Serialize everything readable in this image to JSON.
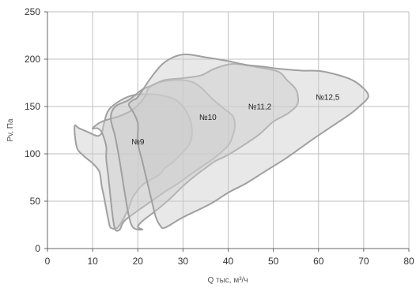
{
  "chart_data": {
    "type": "area",
    "xlabel": "Q тыс, м³/ч",
    "ylabel": "Pv, Па",
    "xlim": [
      0,
      80
    ],
    "ylim": [
      0,
      250
    ],
    "x_ticks": [
      0,
      10,
      20,
      30,
      40,
      50,
      60,
      70,
      80
    ],
    "y_ticks": [
      0,
      50,
      100,
      150,
      200,
      250
    ],
    "grid": true,
    "colors": {
      "fill": "#d9d9d9",
      "stroke": "#a0a0a0"
    },
    "series": [
      {
        "name": "№9",
        "label_at": [
          20,
          110
        ],
        "points": [
          [
            6,
            129
          ],
          [
            7,
            127
          ],
          [
            9,
            123
          ],
          [
            11,
            119
          ],
          [
            12,
            122
          ],
          [
            12.5,
            132
          ],
          [
            13.5,
            146
          ],
          [
            16,
            156
          ],
          [
            19,
            162
          ],
          [
            22,
            163
          ],
          [
            25,
            162
          ],
          [
            28,
            158
          ],
          [
            30,
            150
          ],
          [
            31.5,
            137
          ],
          [
            32,
            123
          ],
          [
            31.5,
            111
          ],
          [
            30,
            102
          ],
          [
            28,
            92
          ],
          [
            26,
            85
          ],
          [
            25,
            79
          ],
          [
            23,
            73
          ],
          [
            21,
            67
          ],
          [
            19,
            55
          ],
          [
            18,
            43
          ],
          [
            17,
            33
          ],
          [
            15.5,
            22
          ],
          [
            14,
            22
          ],
          [
            13.5,
            30
          ],
          [
            13,
            42
          ],
          [
            12.5,
            55
          ],
          [
            12,
            66
          ],
          [
            11.5,
            81
          ],
          [
            10,
            90
          ],
          [
            8,
            98
          ],
          [
            6.5,
            107
          ]
        ]
      },
      {
        "name": "№10",
        "label_at": [
          35.5,
          136
        ],
        "points": [
          [
            10,
            127
          ],
          [
            12,
            134
          ],
          [
            16,
            140
          ],
          [
            19,
            147
          ],
          [
            21.5,
            160
          ],
          [
            22.5,
            170
          ],
          [
            25,
            176
          ],
          [
            29,
            178
          ],
          [
            32,
            176
          ],
          [
            34,
            170
          ],
          [
            35.5,
            163
          ],
          [
            36.5,
            158
          ],
          [
            37.5,
            154
          ],
          [
            39,
            148
          ],
          [
            41,
            140
          ],
          [
            41.5,
            130
          ],
          [
            41,
            119
          ],
          [
            40,
            109
          ],
          [
            37,
            96
          ],
          [
            34,
            86
          ],
          [
            31,
            76
          ],
          [
            29,
            69
          ],
          [
            26,
            60
          ],
          [
            23,
            50
          ],
          [
            20,
            40
          ],
          [
            17,
            29
          ],
          [
            16,
            20
          ],
          [
            15,
            20
          ],
          [
            14.5,
            32
          ],
          [
            14,
            52
          ],
          [
            13.5,
            75
          ],
          [
            13,
            95
          ],
          [
            13,
            108
          ],
          [
            12,
            123
          ],
          [
            11,
            127
          ]
        ]
      },
      {
        "name": "№11,2",
        "label_at": [
          47,
          147
        ],
        "points": [
          [
            15,
            150
          ],
          [
            18,
            157
          ],
          [
            21,
            168
          ],
          [
            23,
            172
          ],
          [
            26,
            178
          ],
          [
            30,
            180
          ],
          [
            34,
            183
          ],
          [
            37,
            190
          ],
          [
            41,
            195
          ],
          [
            46,
            192
          ],
          [
            51,
            187
          ],
          [
            53,
            178
          ],
          [
            55,
            168
          ],
          [
            55.5,
            157
          ],
          [
            55,
            150
          ],
          [
            53,
            142
          ],
          [
            50,
            134
          ],
          [
            47,
            121
          ],
          [
            44,
            111
          ],
          [
            40,
            99
          ],
          [
            37,
            92
          ],
          [
            35,
            85
          ],
          [
            33,
            78
          ],
          [
            30,
            66
          ],
          [
            27,
            52
          ],
          [
            24,
            40
          ],
          [
            21,
            29
          ],
          [
            20,
            23
          ],
          [
            21,
            20
          ],
          [
            19,
            22
          ],
          [
            18,
            35
          ],
          [
            17,
            62
          ],
          [
            16,
            92
          ],
          [
            15,
            118
          ],
          [
            14,
            138
          ]
        ]
      },
      {
        "name": "№12,5",
        "label_at": [
          62,
          157
        ],
        "points": [
          [
            20,
            160
          ],
          [
            23,
            181
          ],
          [
            26,
            197
          ],
          [
            30,
            205
          ],
          [
            35,
            202
          ],
          [
            40,
            198
          ],
          [
            44,
            194
          ],
          [
            48,
            192
          ],
          [
            51,
            190
          ],
          [
            56,
            188
          ],
          [
            61,
            187
          ],
          [
            67,
            179
          ],
          [
            70,
            169
          ],
          [
            71,
            160
          ],
          [
            69,
            150
          ],
          [
            67,
            142
          ],
          [
            62,
            126
          ],
          [
            58,
            113
          ],
          [
            53,
            96
          ],
          [
            48,
            81
          ],
          [
            44,
            69
          ],
          [
            40,
            59
          ],
          [
            36,
            47
          ],
          [
            30,
            33
          ],
          [
            26,
            22
          ],
          [
            25,
            24
          ],
          [
            24,
            33
          ],
          [
            23,
            52
          ],
          [
            22,
            72
          ],
          [
            21,
            92
          ],
          [
            20,
            112
          ],
          [
            20,
            132
          ],
          [
            19,
            144
          ],
          [
            18,
            152
          ],
          [
            19,
            157
          ]
        ]
      }
    ]
  }
}
